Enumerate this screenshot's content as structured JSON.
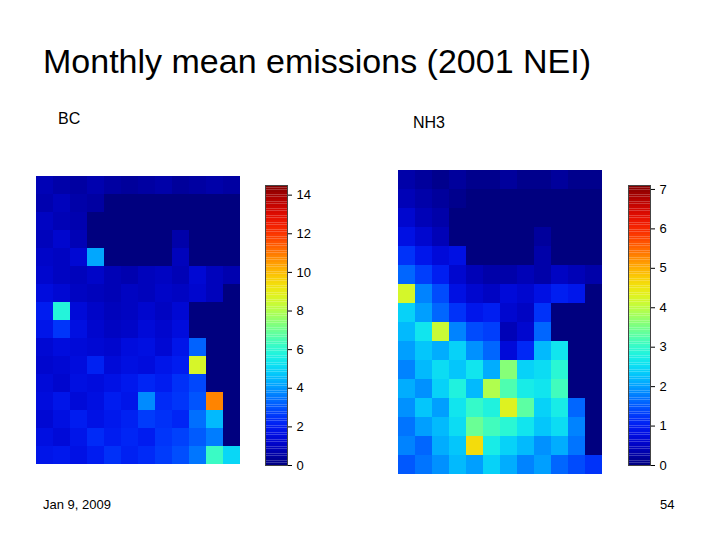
{
  "slide": {
    "title": "Monthly mean emissions (2001 NEI)",
    "date": "Jan 9, 2009",
    "page": "54"
  },
  "chart_data": [
    {
      "type": "heatmap",
      "title": "BC",
      "cells": [
        [
          0.8,
          0.6,
          0.5,
          0.7,
          0.5,
          0.4,
          0.5,
          0.6,
          0.4,
          0.5,
          0.6,
          0.5
        ],
        [
          0.7,
          0.9,
          0.6,
          0.5,
          0,
          0,
          0,
          0,
          0,
          0,
          0,
          0
        ],
        [
          1.0,
          0.8,
          0.7,
          0,
          0,
          0,
          0,
          0,
          0,
          0,
          0,
          0
        ],
        [
          0.9,
          1.2,
          0.8,
          0,
          0,
          0,
          0,
          0,
          0.6,
          0,
          0,
          0
        ],
        [
          1.1,
          1.0,
          1.3,
          4.2,
          0,
          0,
          0,
          0,
          0.9,
          0,
          0,
          0
        ],
        [
          1.2,
          1.0,
          0.9,
          1.1,
          0.8,
          0.7,
          0.9,
          1.0,
          0.8,
          1.3,
          0.9,
          0.7
        ],
        [
          1.5,
          1.3,
          1.0,
          0.9,
          0.8,
          1.0,
          0.9,
          1.1,
          1.0,
          1.2,
          0.9,
          0
        ],
        [
          2.0,
          5.8,
          1.4,
          1.1,
          0.9,
          1.0,
          1.2,
          1.0,
          1.3,
          0,
          0,
          0
        ],
        [
          1.8,
          2.5,
          1.6,
          1.2,
          1.0,
          1.1,
          1.4,
          1.2,
          1.5,
          0,
          0,
          0
        ],
        [
          1.3,
          1.5,
          1.4,
          1.3,
          1.2,
          1.5,
          1.6,
          1.3,
          1.8,
          3.2,
          0,
          0
        ],
        [
          1.2,
          1.3,
          1.5,
          2.1,
          1.4,
          1.6,
          1.5,
          1.8,
          2.0,
          8.6,
          0,
          0
        ],
        [
          1.4,
          1.2,
          1.6,
          1.5,
          1.7,
          1.9,
          2.2,
          2.0,
          2.4,
          2.8,
          0,
          0
        ],
        [
          1.5,
          1.8,
          1.4,
          1.6,
          2.0,
          1.8,
          3.8,
          2.3,
          2.5,
          3.0,
          10.8,
          0
        ],
        [
          1.3,
          1.6,
          2.0,
          1.7,
          1.9,
          2.1,
          2.6,
          2.4,
          2.2,
          3.4,
          4.5,
          0
        ],
        [
          1.6,
          1.4,
          1.8,
          2.3,
          2.0,
          2.2,
          2.0,
          2.5,
          2.7,
          3.1,
          3.6,
          0
        ],
        [
          1.8,
          1.9,
          1.7,
          2.0,
          2.4,
          2.1,
          2.3,
          2.6,
          2.9,
          3.5,
          6.2,
          5.0
        ]
      ],
      "colorbar": {
        "lim": [
          0,
          14.5
        ],
        "ticks": [
          0,
          2,
          4,
          6,
          8,
          10,
          12,
          14
        ]
      }
    },
    {
      "type": "heatmap",
      "title": "NH3",
      "cells": [
        [
          0.3,
          0.2,
          0.1,
          0.2,
          0.1,
          0.1,
          0.2,
          0.1,
          0.1,
          0.2,
          0.1,
          0.1
        ],
        [
          0.4,
          0.3,
          0.2,
          0.1,
          0,
          0,
          0,
          0,
          0,
          0,
          0,
          0
        ],
        [
          0.6,
          0.4,
          0.3,
          0,
          0,
          0,
          0,
          0,
          0,
          0,
          0,
          0
        ],
        [
          0.8,
          0.6,
          0.4,
          0,
          0,
          0,
          0,
          0,
          0.2,
          0,
          0,
          0
        ],
        [
          1.2,
          0.9,
          0.7,
          0.8,
          0,
          0,
          0,
          0,
          0.3,
          0,
          0,
          0
        ],
        [
          1.6,
          1.3,
          1.0,
          0.6,
          0.4,
          0.3,
          0.3,
          0.4,
          0.3,
          0.5,
          0.4,
          0.3
        ],
        [
          4.2,
          1.8,
          1.4,
          0.8,
          0.6,
          0.5,
          0.7,
          0.6,
          0.8,
          1.0,
          0.9,
          0
        ],
        [
          2.4,
          2.0,
          1.6,
          1.2,
          0.9,
          1.0,
          0.6,
          0.5,
          1.2,
          0,
          0,
          0
        ],
        [
          2.2,
          2.6,
          4.1,
          1.8,
          1.4,
          1.3,
          0.4,
          0.6,
          1.6,
          0,
          0,
          0
        ],
        [
          2.0,
          2.3,
          2.1,
          2.4,
          1.9,
          1.6,
          0.7,
          1.1,
          2.2,
          2.6,
          0,
          0
        ],
        [
          1.8,
          2.2,
          2.5,
          2.3,
          2.6,
          2.1,
          3.6,
          2.4,
          2.5,
          2.9,
          0,
          0
        ],
        [
          2.1,
          1.9,
          2.4,
          2.8,
          2.2,
          3.9,
          3.2,
          2.7,
          2.6,
          3.1,
          0,
          0
        ],
        [
          1.9,
          2.3,
          2.0,
          2.6,
          3.0,
          2.8,
          4.3,
          3.3,
          2.4,
          2.7,
          1.6,
          0
        ],
        [
          1.7,
          2.0,
          2.2,
          2.5,
          3.4,
          3.1,
          2.9,
          2.6,
          2.3,
          2.5,
          1.8,
          0
        ],
        [
          1.8,
          1.6,
          2.1,
          2.3,
          4.6,
          2.7,
          2.4,
          2.2,
          1.9,
          2.1,
          1.7,
          0
        ],
        [
          1.5,
          1.7,
          1.9,
          2.2,
          2.0,
          2.4,
          2.1,
          1.8,
          2.0,
          1.6,
          1.4,
          1.2
        ]
      ],
      "colorbar": {
        "lim": [
          0,
          7.1
        ],
        "ticks": [
          0,
          1,
          2,
          3,
          4,
          5,
          6,
          7
        ]
      }
    }
  ]
}
